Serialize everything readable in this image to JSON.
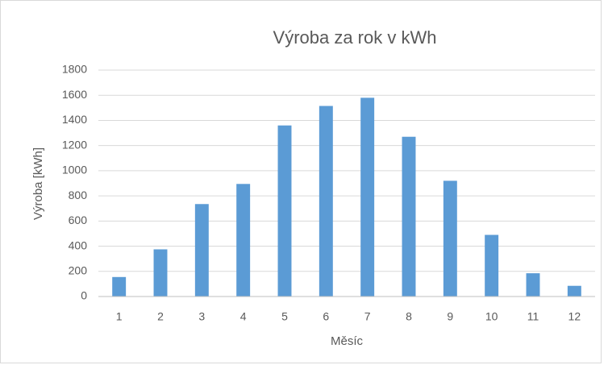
{
  "chart_data": {
    "type": "bar",
    "title": "Výroba za rok v kWh",
    "x_label": "Měsíc",
    "y_label": "Výroba [kWh]",
    "categories": [
      "1",
      "2",
      "3",
      "4",
      "5",
      "6",
      "7",
      "8",
      "9",
      "10",
      "11",
      "12"
    ],
    "values": [
      155,
      375,
      735,
      895,
      1360,
      1515,
      1580,
      1270,
      920,
      490,
      185,
      85
    ],
    "color": "#5b9bd5",
    "ylim": [
      0,
      1800
    ],
    "yticks": [
      0,
      200,
      400,
      600,
      800,
      1000,
      1200,
      1400,
      1600,
      1800
    ],
    "grid": true
  }
}
